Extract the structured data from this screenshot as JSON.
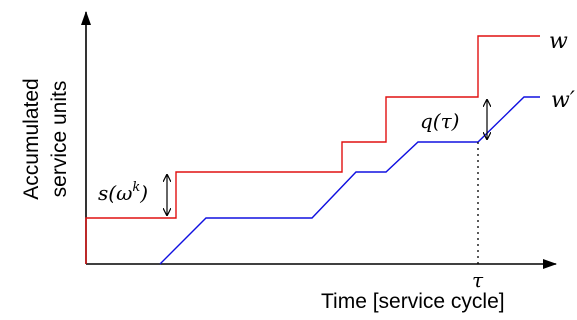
{
  "labels": {
    "y_axis_line1": "Accumulated",
    "y_axis_line2": "service units",
    "x_axis": "Time [service cycle]",
    "series_w": "w",
    "series_w_prime": "w′",
    "tau": "τ",
    "q_tau": "q(τ)",
    "s_omega_base": "s(ω",
    "s_omega_sup": "k",
    "s_omega_close": ")"
  },
  "colors": {
    "axis": "#000000",
    "series_w": "#e01010",
    "series_w_prime": "#1010e0"
  }
}
